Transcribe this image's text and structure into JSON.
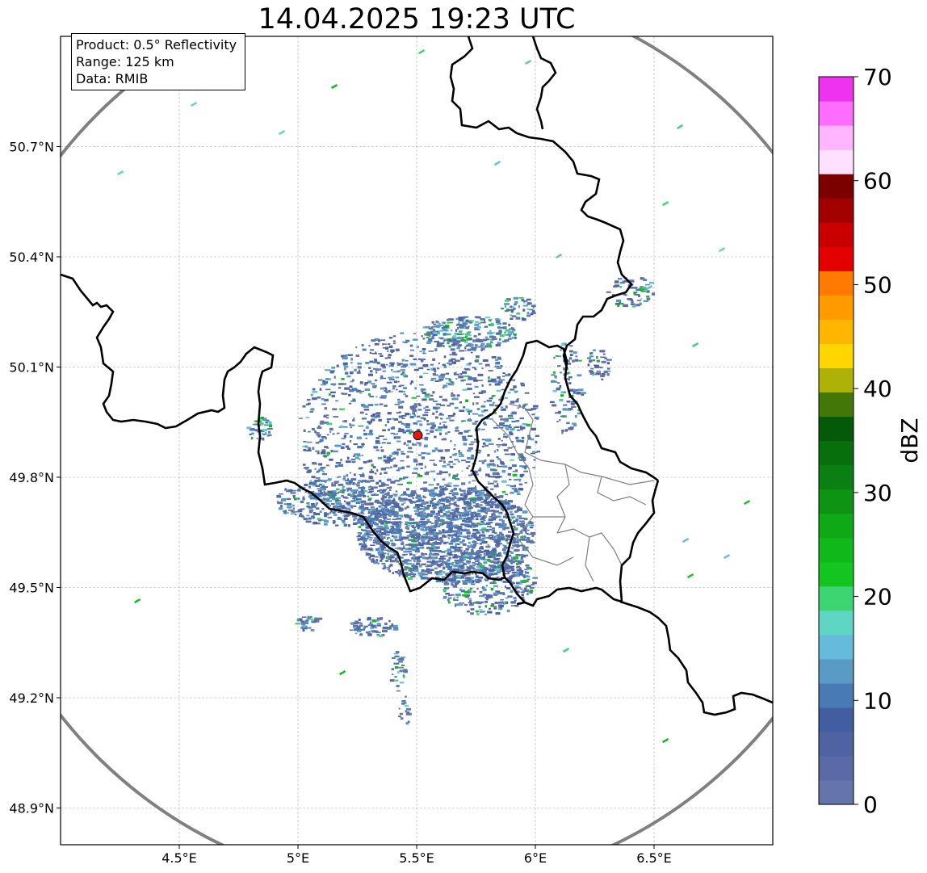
{
  "title": "14.04.2025 19:23 UTC",
  "info": {
    "product": "Product: 0.5° Reflectivity",
    "range": "Range: 125 km",
    "source": "Data: RMIB"
  },
  "map": {
    "lon_range": [
      4.0,
      7.0
    ],
    "lat_range": [
      48.8,
      51.0
    ],
    "radar_site": {
      "lon": 5.505,
      "lat": 49.914,
      "color": "#e8160c"
    },
    "range_ring_km": 125,
    "ring_color": "#808080",
    "border_color": "#000000",
    "admin_border_color": "#808080",
    "gridlines": true
  },
  "x_ticks": [
    {
      "value": 4.5,
      "label": "4.5°E"
    },
    {
      "value": 5.0,
      "label": "5°E"
    },
    {
      "value": 5.5,
      "label": "5.5°E"
    },
    {
      "value": 6.0,
      "label": "6°E"
    },
    {
      "value": 6.5,
      "label": "6.5°E"
    }
  ],
  "y_ticks": [
    {
      "value": 50.7,
      "label": "50.7°N"
    },
    {
      "value": 50.4,
      "label": "50.4°N"
    },
    {
      "value": 50.1,
      "label": "50.1°N"
    },
    {
      "value": 49.8,
      "label": "49.8°N"
    },
    {
      "value": 49.5,
      "label": "49.5°N"
    },
    {
      "value": 49.2,
      "label": "49.2°N"
    },
    {
      "value": 48.9,
      "label": "48.9°N"
    }
  ],
  "colorbar": {
    "label": "dBZ",
    "min": 0,
    "max": 70,
    "ticks": [
      {
        "value": 0,
        "label": "0"
      },
      {
        "value": 10,
        "label": "10"
      },
      {
        "value": 20,
        "label": "20"
      },
      {
        "value": 30,
        "label": "30"
      },
      {
        "value": 40,
        "label": "40"
      },
      {
        "value": 50,
        "label": "50"
      },
      {
        "value": 60,
        "label": "60"
      },
      {
        "value": 70,
        "label": "70"
      }
    ],
    "colors": [
      "#6574aa",
      "#5a6aa6",
      "#4f63a3",
      "#425da0",
      "#4a7ab3",
      "#5a9bc5",
      "#65bcda",
      "#5fd5c4",
      "#3dd474",
      "#13c51e",
      "#10b81a",
      "#0fa817",
      "#0d9413",
      "#0b8012",
      "#096f0d",
      "#055a0a",
      "#437808",
      "#adb108",
      "#ffd600",
      "#ffb600",
      "#ff9a00",
      "#ff7a00",
      "#e50000",
      "#c80000",
      "#a30000",
      "#7d0000",
      "#ffe0ff",
      "#ffb6ff",
      "#ff6dff",
      "#ee33ee"
    ]
  }
}
